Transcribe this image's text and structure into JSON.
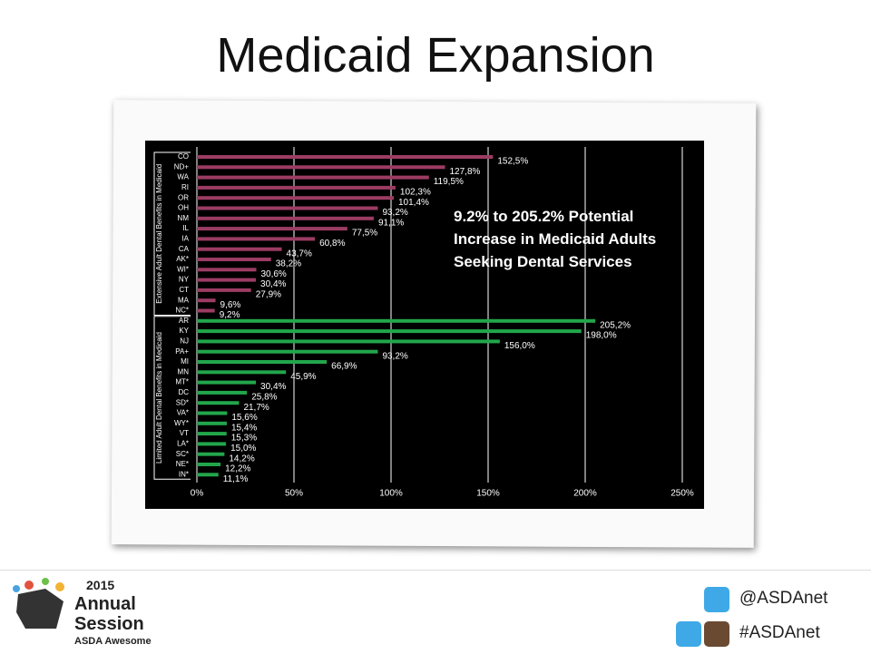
{
  "title": "Medicaid Expansion",
  "chart_data": {
    "type": "bar",
    "orientation": "horizontal",
    "annotation": "9.2% to 205.2% Potential Increase in Medicaid Adults Seeking Dental Services",
    "groups": [
      {
        "name": "Extensive Adult Dental Benefits in Medicaid",
        "color": "#9c3c63",
        "categories": [
          "CO",
          "ND+",
          "WA",
          "RI",
          "OR",
          "OH",
          "NM",
          "IL",
          "IA",
          "CA",
          "AK*",
          "WI*",
          "NY",
          "CT",
          "MA",
          "NC*"
        ],
        "values": [
          152.5,
          127.8,
          119.5,
          102.3,
          101.4,
          93.2,
          91.1,
          77.5,
          60.8,
          43.7,
          38.2,
          30.6,
          30.4,
          27.9,
          9.6,
          9.2
        ],
        "value_labels": [
          "152,5%",
          "127,8%",
          "119,5%",
          "102,3%",
          "101,4%",
          "93,2%",
          "91,1%",
          "77,5%",
          "60,8%",
          "43,7%",
          "38,2%",
          "30,6%",
          "30,4%",
          "27,9%",
          "9,6%",
          "9,2%"
        ]
      },
      {
        "name": "Limited Adult Dental Benefits in Medicaid",
        "color": "#22a64b",
        "categories": [
          "AR",
          "KY",
          "NJ",
          "PA+",
          "MI",
          "MN",
          "MT*",
          "DC",
          "SD*",
          "VA*",
          "WY*",
          "VT",
          "LA*",
          "SC*",
          "NE*",
          "IN*"
        ],
        "values": [
          205.2,
          198.0,
          156.0,
          93.2,
          66.9,
          45.9,
          30.4,
          25.8,
          21.7,
          15.6,
          15.4,
          15.3,
          15.0,
          14.2,
          12.2,
          11.1
        ],
        "value_labels": [
          "205,2%",
          "198,0%",
          "156,0%",
          "93,2%",
          "66,9%",
          "45,9%",
          "30,4%",
          "25,8%",
          "21,7%",
          "15,6%",
          "15,4%",
          "15,3%",
          "15,0%",
          "14,2%",
          "12,2%",
          "11,1%"
        ]
      }
    ],
    "xlim": [
      0,
      250
    ],
    "xticks": [
      {
        "value": 0,
        "label": "0%"
      },
      {
        "value": 50,
        "label": "50%"
      },
      {
        "value": 100,
        "label": "100%"
      },
      {
        "value": 150,
        "label": "150%"
      },
      {
        "value": 200,
        "label": "200%"
      },
      {
        "value": 250,
        "label": "250%"
      }
    ],
    "grid": true
  },
  "footer": {
    "twitter": "@ASDAnet",
    "hashtag": "#ASDAnet",
    "logo": {
      "year": "2015",
      "line1": "Annual",
      "line2": "Session",
      "tagline": "ASDA Awesome"
    }
  }
}
